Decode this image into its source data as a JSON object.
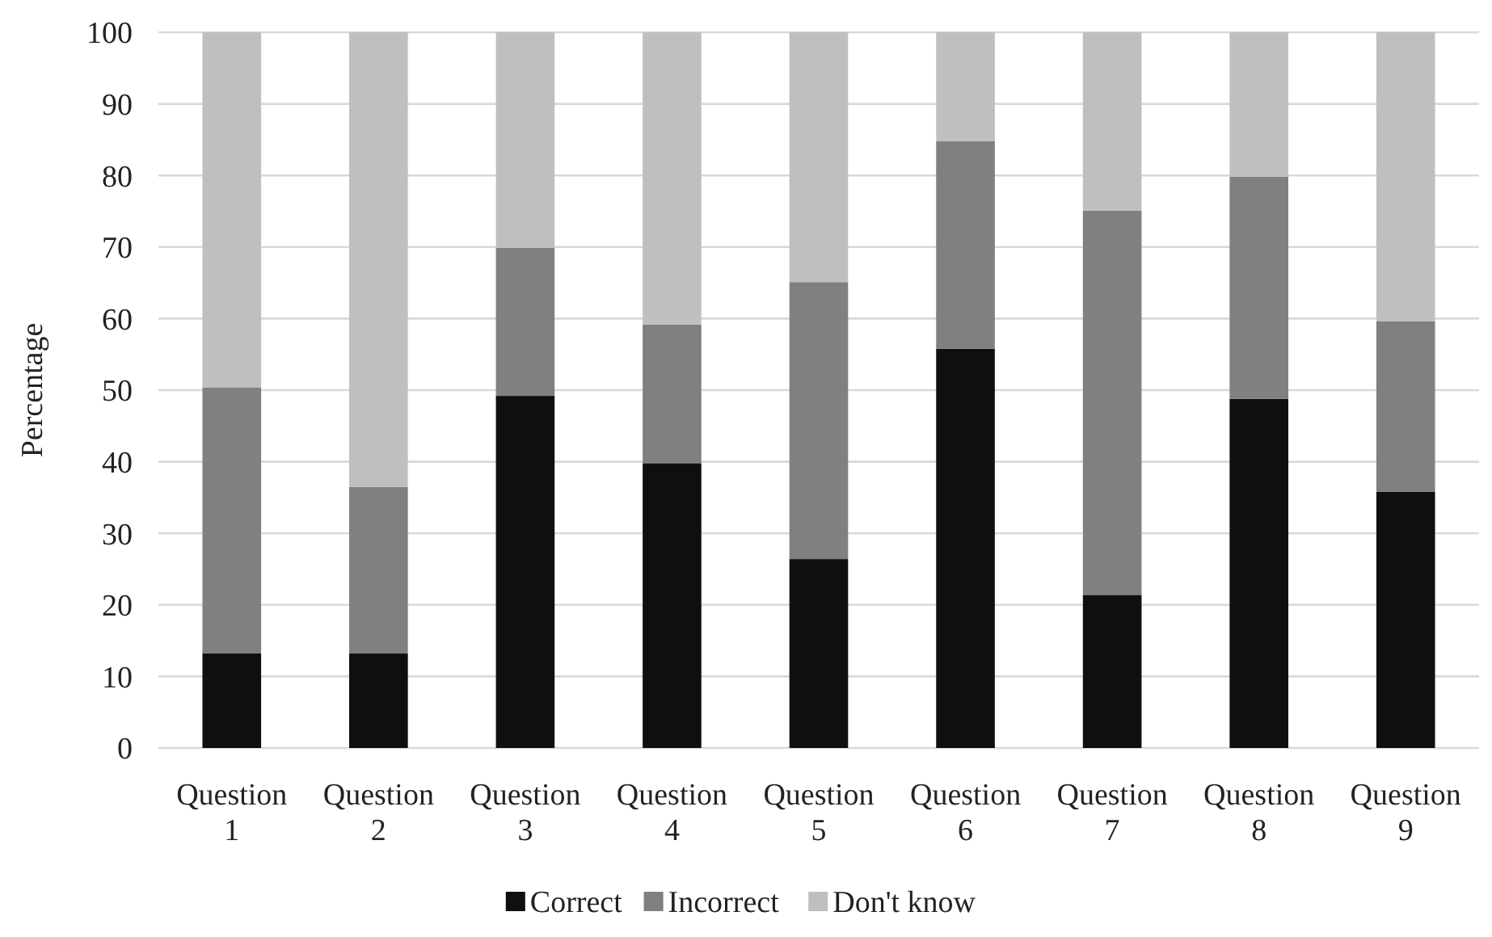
{
  "chart_data": {
    "type": "bar",
    "stacked": true,
    "ylabel": "Percentage",
    "categories": [
      "Question 1",
      "Question 2",
      "Question 3",
      "Question 4",
      "Question 5",
      "Question 6",
      "Question 7",
      "Question 8",
      "Question 9"
    ],
    "series": [
      {
        "name": "Correct",
        "color": "#0f0f0f",
        "values": [
          13.2,
          13.2,
          49.2,
          39.8,
          26.4,
          55.8,
          21.4,
          48.8,
          35.8
        ]
      },
      {
        "name": "Incorrect",
        "color": "#808080",
        "values": [
          37.2,
          23.3,
          20.7,
          19.4,
          38.7,
          29.0,
          53.7,
          31.0,
          23.8
        ]
      },
      {
        "name": "Don't know",
        "color": "#bfbfbf",
        "values": [
          49.6,
          63.5,
          30.1,
          40.8,
          34.9,
          15.2,
          24.9,
          20.2,
          40.4
        ]
      }
    ],
    "ylim": [
      0,
      100
    ],
    "yticks": [
      0,
      10,
      20,
      30,
      40,
      50,
      60,
      70,
      80,
      90,
      100
    ],
    "grid": "y",
    "legend": "bottom"
  }
}
